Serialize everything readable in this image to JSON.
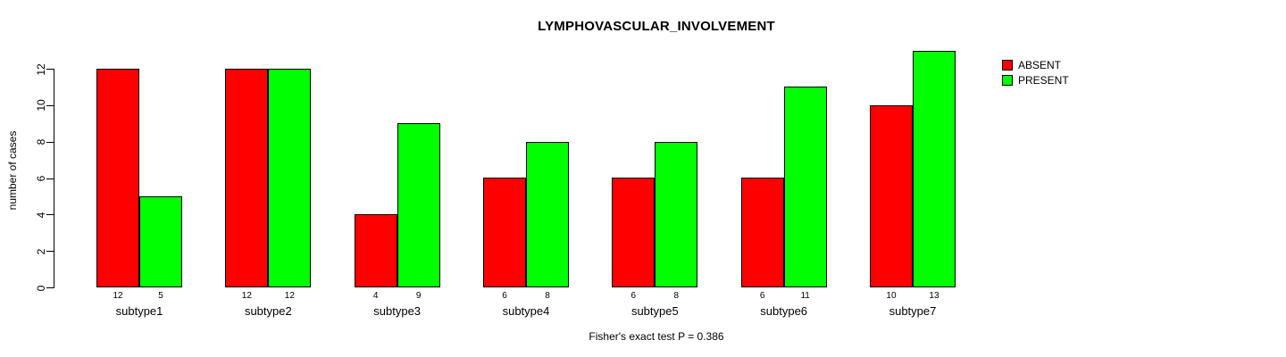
{
  "title": "LYMPHOVASCULAR_INVOLVEMENT",
  "footer": "Fisher's exact test P = 0.386",
  "chart_data": {
    "type": "bar",
    "title": "LYMPHOVASCULAR_INVOLVEMENT",
    "xlabel": "",
    "ylabel": "number of cases",
    "categories": [
      "subtype1",
      "subtype2",
      "subtype3",
      "subtype4",
      "subtype5",
      "subtype6",
      "subtype7"
    ],
    "series": [
      {
        "name": "ABSENT",
        "color": "#ff0000",
        "values": [
          12,
          12,
          4,
          6,
          6,
          6,
          10
        ]
      },
      {
        "name": "PRESENT",
        "color": "#00ff00",
        "values": [
          5,
          12,
          9,
          8,
          8,
          11,
          13
        ]
      }
    ],
    "bar_value_labels": [
      [
        "12",
        "5"
      ],
      [
        "12",
        "12"
      ],
      [
        "4",
        "9"
      ],
      [
        "6",
        "8"
      ],
      [
        "6",
        "8"
      ],
      [
        "6",
        "11"
      ],
      [
        "10",
        "13"
      ]
    ],
    "yticks": [
      0,
      2,
      4,
      6,
      8,
      10,
      12
    ],
    "ylim": [
      0,
      13
    ],
    "grid": false,
    "legend_position": "top-right-outside",
    "annotation": "Fisher's exact test P = 0.386",
    "bar_border_color": "#000000",
    "background_color": "#ffffff"
  }
}
